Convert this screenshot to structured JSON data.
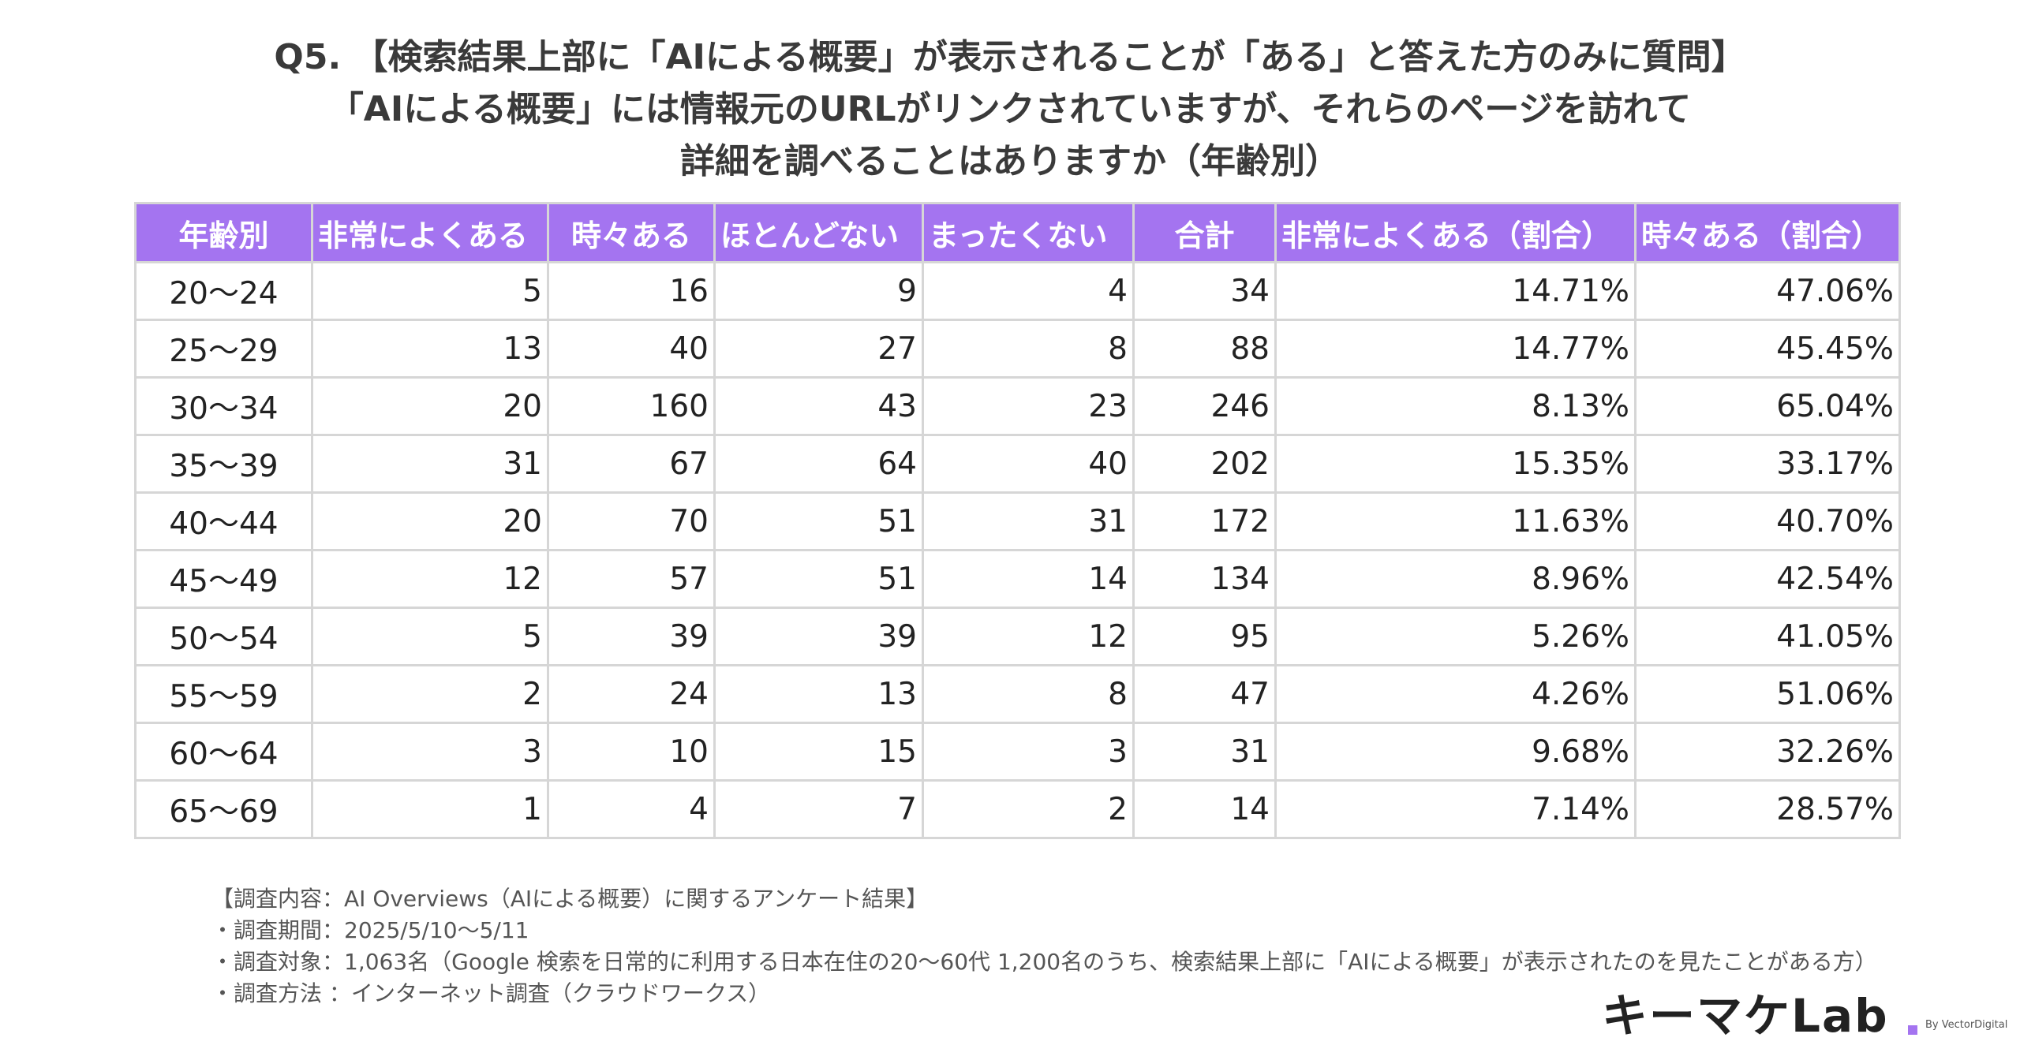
{
  "title": {
    "line1": "Q5. 【検索結果上部に「AIによる概要」が表示されることが「ある」と答えた方のみに質問】",
    "line2": "「AIによる概要」には情報元のURLがリンクされていますが、それらのページを訪れて",
    "line3": "詳細を調べることはありますか（年齢別）"
  },
  "table": {
    "headers": [
      "年齢別",
      "非常によくある",
      "時々ある",
      "ほとんどない",
      "まったくない",
      "合計",
      "非常によくある（割合）",
      "時々ある（割合）"
    ],
    "rows": [
      [
        "20〜24",
        "5",
        "16",
        "9",
        "4",
        "34",
        "14.71%",
        "47.06%"
      ],
      [
        "25〜29",
        "13",
        "40",
        "27",
        "8",
        "88",
        "14.77%",
        "45.45%"
      ],
      [
        "30〜34",
        "20",
        "160",
        "43",
        "23",
        "246",
        "8.13%",
        "65.04%"
      ],
      [
        "35〜39",
        "31",
        "67",
        "64",
        "40",
        "202",
        "15.35%",
        "33.17%"
      ],
      [
        "40〜44",
        "20",
        "70",
        "51",
        "31",
        "172",
        "11.63%",
        "40.70%"
      ],
      [
        "45〜49",
        "12",
        "57",
        "51",
        "14",
        "134",
        "8.96%",
        "42.54%"
      ],
      [
        "50〜54",
        "5",
        "39",
        "39",
        "12",
        "95",
        "5.26%",
        "41.05%"
      ],
      [
        "55〜59",
        "2",
        "24",
        "13",
        "8",
        "47",
        "4.26%",
        "51.06%"
      ],
      [
        "60〜64",
        "3",
        "10",
        "15",
        "3",
        "31",
        "9.68%",
        "32.26%"
      ],
      [
        "65〜69",
        "1",
        "4",
        "7",
        "2",
        "14",
        "7.14%",
        "28.57%"
      ]
    ]
  },
  "notes": {
    "line1": "【調査内容：AI Overviews（AIによる概要）に関するアンケート結果】",
    "line2": "・調査期間：2025/5/10〜5/11",
    "line3": "・調査対象：1,063名（Google 検索を日常的に利用する日本在住の20〜60代 1,200名のうち、検索結果上部に「AIによる概要」が表示されたのを見たことがある方）",
    "line4": "・調査方法 ：インターネット調査（クラウドワークス）"
  },
  "logo": {
    "main": "キーマケLab",
    "by": "By VectorDigital"
  },
  "colors": {
    "header_bg": "#a474f0",
    "border": "#d6d6d6"
  }
}
